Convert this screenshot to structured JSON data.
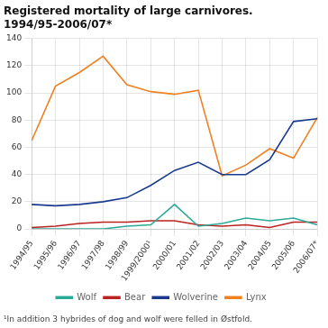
{
  "chart_data": {
    "type": "line",
    "title": "Registered mortality of large carnivores. 1994/95-2006/07*",
    "footnote": "¹In addition 3 hybrides of dog and wolf were felled in Østfold.",
    "categories": [
      "1994/95",
      "1995/96",
      "1996/97",
      "1997/98",
      "1998/99",
      "1999/2000¹",
      "2000/01",
      "2001/02",
      "2002/03",
      "2003/04",
      "2004/05",
      "2005/06",
      "2006/07*"
    ],
    "series": [
      {
        "name": "Wolf",
        "color": "#2aaa99",
        "values": [
          0,
          0,
          0,
          0,
          2,
          3,
          18,
          2,
          4,
          8,
          6,
          8,
          3
        ]
      },
      {
        "name": "Bear",
        "color": "#bb2222",
        "values": [
          1,
          2,
          4,
          5,
          5,
          6,
          6,
          3,
          2,
          3,
          1,
          5,
          5
        ]
      },
      {
        "name": "Wolverine",
        "color": "#1a3a8f",
        "values": [
          18,
          17,
          18,
          20,
          23,
          32,
          43,
          49,
          40,
          40,
          51,
          79,
          81
        ]
      },
      {
        "name": "Lynx",
        "color": "#f08020",
        "values": [
          65,
          105,
          115,
          127,
          106,
          101,
          99,
          102,
          39,
          47,
          59,
          52,
          82
        ]
      }
    ],
    "ylim": [
      0,
      140
    ],
    "yticks": [
      0,
      20,
      40,
      60,
      80,
      100,
      120,
      140
    ],
    "grid": true,
    "legend": "bottom"
  }
}
